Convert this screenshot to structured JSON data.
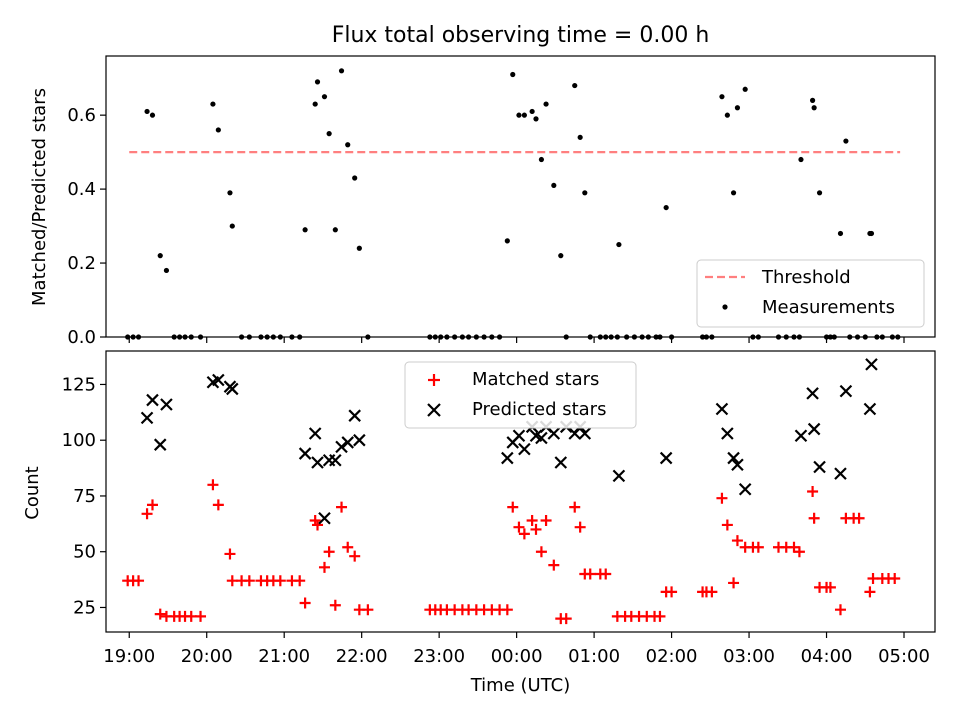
{
  "chart_data": [
    {
      "type": "scatter",
      "title": "Flux total observing time = 0.00 h",
      "xlabel": "",
      "ylabel": "Matched/Predicted stars",
      "xlim": [
        18.7,
        29.4
      ],
      "ylim": [
        0,
        0.76
      ],
      "x_ticks": [
        19,
        20,
        21,
        22,
        23,
        24,
        25,
        26,
        27,
        28,
        29
      ],
      "y_ticks": [
        0.0,
        0.2,
        0.4,
        0.6
      ],
      "y_tick_labels": [
        "0.0",
        "0.2",
        "0.4",
        "0.6"
      ],
      "legend": {
        "position": "bottom-right",
        "entries": [
          "Threshold",
          "Measurements"
        ]
      },
      "threshold": {
        "name": "Threshold",
        "value": 0.5,
        "x_start": 19.0,
        "x_end": 28.95,
        "color": "#ff7f7f"
      },
      "series": [
        {
          "name": "Measurements",
          "marker": "dot",
          "color": "#000000",
          "points": [
            [
              18.98,
              0
            ],
            [
              19.05,
              0
            ],
            [
              19.12,
              0
            ],
            [
              19.23,
              0.61
            ],
            [
              19.3,
              0.6
            ],
            [
              19.4,
              0.22
            ],
            [
              19.48,
              0.18
            ],
            [
              19.58,
              0
            ],
            [
              19.65,
              0
            ],
            [
              19.72,
              0
            ],
            [
              19.8,
              0
            ],
            [
              19.92,
              0
            ],
            [
              20.08,
              0.63
            ],
            [
              20.15,
              0.56
            ],
            [
              20.3,
              0.39
            ],
            [
              20.33,
              0.3
            ],
            [
              20.45,
              0
            ],
            [
              20.55,
              0
            ],
            [
              20.7,
              0
            ],
            [
              20.78,
              0
            ],
            [
              20.86,
              0
            ],
            [
              20.95,
              0
            ],
            [
              21.1,
              0
            ],
            [
              21.2,
              0
            ],
            [
              21.27,
              0.29
            ],
            [
              21.4,
              0.63
            ],
            [
              21.43,
              0.69
            ],
            [
              21.52,
              0.65
            ],
            [
              21.58,
              0.55
            ],
            [
              21.66,
              0.29
            ],
            [
              21.74,
              0.72
            ],
            [
              21.82,
              0.52
            ],
            [
              21.91,
              0.43
            ],
            [
              21.97,
              0.24
            ],
            [
              22.08,
              0
            ],
            [
              22.88,
              0
            ],
            [
              22.95,
              0
            ],
            [
              23.02,
              0
            ],
            [
              23.1,
              0
            ],
            [
              23.2,
              0
            ],
            [
              23.3,
              0
            ],
            [
              23.38,
              0
            ],
            [
              23.48,
              0
            ],
            [
              23.58,
              0
            ],
            [
              23.68,
              0
            ],
            [
              23.78,
              0
            ],
            [
              23.88,
              0.26
            ],
            [
              23.95,
              0.71
            ],
            [
              24.03,
              0.6
            ],
            [
              24.1,
              0.6
            ],
            [
              24.2,
              0.61
            ],
            [
              24.25,
              0.59
            ],
            [
              24.32,
              0.48
            ],
            [
              24.38,
              0.63
            ],
            [
              24.48,
              0.41
            ],
            [
              24.57,
              0.22
            ],
            [
              24.64,
              0
            ],
            [
              24.75,
              0.68
            ],
            [
              24.82,
              0.54
            ],
            [
              24.88,
              0.39
            ],
            [
              24.95,
              0
            ],
            [
              25.08,
              0
            ],
            [
              25.15,
              0
            ],
            [
              25.22,
              0
            ],
            [
              25.3,
              0
            ],
            [
              25.32,
              0.25
            ],
            [
              25.42,
              0
            ],
            [
              25.52,
              0
            ],
            [
              25.62,
              0
            ],
            [
              25.7,
              0
            ],
            [
              25.8,
              0
            ],
            [
              25.85,
              0
            ],
            [
              25.93,
              0.35
            ],
            [
              26.0,
              0
            ],
            [
              26.4,
              0
            ],
            [
              26.45,
              0
            ],
            [
              26.52,
              0
            ],
            [
              26.65,
              0.65
            ],
            [
              26.72,
              0.6
            ],
            [
              26.8,
              0.39
            ],
            [
              26.85,
              0.62
            ],
            [
              26.95,
              0.67
            ],
            [
              27.05,
              0
            ],
            [
              27.12,
              0
            ],
            [
              27.38,
              0
            ],
            [
              27.48,
              0
            ],
            [
              27.58,
              0
            ],
            [
              27.65,
              0
            ],
            [
              27.67,
              0.48
            ],
            [
              27.82,
              0.64
            ],
            [
              27.84,
              0.62
            ],
            [
              27.91,
              0.39
            ],
            [
              28.0,
              0
            ],
            [
              28.05,
              0
            ],
            [
              28.1,
              0
            ],
            [
              28.18,
              0.28
            ],
            [
              28.25,
              0.53
            ],
            [
              28.3,
              0
            ],
            [
              28.4,
              0
            ],
            [
              28.5,
              0
            ],
            [
              28.56,
              0.28
            ],
            [
              28.58,
              0.28
            ],
            [
              28.65,
              0
            ],
            [
              28.72,
              0
            ],
            [
              28.85,
              0
            ],
            [
              28.92,
              0
            ]
          ]
        }
      ]
    },
    {
      "type": "scatter",
      "title": "",
      "xlabel": "Time (UTC)",
      "ylabel": "Count",
      "xlim": [
        18.7,
        29.4
      ],
      "ylim": [
        14,
        140
      ],
      "x_ticks": [
        19,
        20,
        21,
        22,
        23,
        24,
        25,
        26,
        27,
        28,
        29
      ],
      "x_tick_labels": [
        "19:00",
        "20:00",
        "21:00",
        "22:00",
        "23:00",
        "00:00",
        "01:00",
        "02:00",
        "03:00",
        "04:00",
        "05:00"
      ],
      "y_ticks": [
        25,
        50,
        75,
        100,
        125
      ],
      "y_tick_labels": [
        "25",
        "50",
        "75",
        "100",
        "125"
      ],
      "legend": {
        "position": "top-center",
        "entries": [
          "Matched stars",
          "Predicted stars"
        ]
      },
      "series": [
        {
          "name": "Matched stars",
          "marker": "plus",
          "color": "#ff0000",
          "points": [
            [
              18.98,
              37
            ],
            [
              19.05,
              37
            ],
            [
              19.12,
              37
            ],
            [
              19.23,
              67
            ],
            [
              19.3,
              71
            ],
            [
              19.4,
              22
            ],
            [
              19.48,
              21
            ],
            [
              19.58,
              21
            ],
            [
              19.65,
              21
            ],
            [
              19.72,
              21
            ],
            [
              19.8,
              21
            ],
            [
              19.92,
              21
            ],
            [
              20.08,
              80
            ],
            [
              20.15,
              71
            ],
            [
              20.3,
              49
            ],
            [
              20.33,
              37
            ],
            [
              20.45,
              37
            ],
            [
              20.55,
              37
            ],
            [
              20.7,
              37
            ],
            [
              20.78,
              37
            ],
            [
              20.86,
              37
            ],
            [
              20.95,
              37
            ],
            [
              21.1,
              37
            ],
            [
              21.2,
              37
            ],
            [
              21.27,
              27
            ],
            [
              21.4,
              64
            ],
            [
              21.43,
              62
            ],
            [
              21.52,
              43
            ],
            [
              21.58,
              50
            ],
            [
              21.66,
              26
            ],
            [
              21.74,
              70
            ],
            [
              21.82,
              52
            ],
            [
              21.91,
              48
            ],
            [
              21.97,
              24
            ],
            [
              22.08,
              24
            ],
            [
              22.88,
              24
            ],
            [
              22.95,
              24
            ],
            [
              23.02,
              24
            ],
            [
              23.1,
              24
            ],
            [
              23.2,
              24
            ],
            [
              23.3,
              24
            ],
            [
              23.38,
              24
            ],
            [
              23.48,
              24
            ],
            [
              23.58,
              24
            ],
            [
              23.68,
              24
            ],
            [
              23.78,
              24
            ],
            [
              23.88,
              24
            ],
            [
              23.95,
              70
            ],
            [
              24.03,
              61
            ],
            [
              24.1,
              58
            ],
            [
              24.2,
              64
            ],
            [
              24.25,
              60
            ],
            [
              24.32,
              50
            ],
            [
              24.38,
              64
            ],
            [
              24.48,
              44
            ],
            [
              24.57,
              20
            ],
            [
              24.64,
              20
            ],
            [
              24.75,
              70
            ],
            [
              24.82,
              61
            ],
            [
              24.88,
              40
            ],
            [
              24.95,
              40
            ],
            [
              25.08,
              40
            ],
            [
              25.15,
              40
            ],
            [
              25.3,
              21
            ],
            [
              25.4,
              21
            ],
            [
              25.48,
              21
            ],
            [
              25.58,
              21
            ],
            [
              25.68,
              21
            ],
            [
              25.78,
              21
            ],
            [
              25.85,
              21
            ],
            [
              25.93,
              32
            ],
            [
              26.0,
              32
            ],
            [
              26.4,
              32
            ],
            [
              26.45,
              32
            ],
            [
              26.52,
              32
            ],
            [
              26.65,
              74
            ],
            [
              26.72,
              62
            ],
            [
              26.8,
              36
            ],
            [
              26.85,
              55
            ],
            [
              26.95,
              52
            ],
            [
              27.05,
              52
            ],
            [
              27.12,
              52
            ],
            [
              27.38,
              52
            ],
            [
              27.48,
              52
            ],
            [
              27.58,
              52
            ],
            [
              27.65,
              50
            ],
            [
              27.82,
              77
            ],
            [
              27.84,
              65
            ],
            [
              27.91,
              34
            ],
            [
              28.0,
              34
            ],
            [
              28.05,
              34
            ],
            [
              28.18,
              24
            ],
            [
              28.25,
              65
            ],
            [
              28.35,
              65
            ],
            [
              28.42,
              65
            ],
            [
              28.56,
              32
            ],
            [
              28.6,
              38
            ],
            [
              28.72,
              38
            ],
            [
              28.8,
              38
            ],
            [
              28.88,
              38
            ]
          ]
        },
        {
          "name": "Predicted stars",
          "marker": "x",
          "color": "#000000",
          "points": [
            [
              19.23,
              110
            ],
            [
              19.3,
              118
            ],
            [
              19.4,
              98
            ],
            [
              19.48,
              116
            ],
            [
              20.08,
              126
            ],
            [
              20.15,
              127
            ],
            [
              20.3,
              124
            ],
            [
              20.33,
              123
            ],
            [
              21.27,
              94
            ],
            [
              21.4,
              103
            ],
            [
              21.43,
              90
            ],
            [
              21.52,
              65
            ],
            [
              21.58,
              91
            ],
            [
              21.66,
              91
            ],
            [
              21.74,
              97
            ],
            [
              21.82,
              99
            ],
            [
              21.91,
              111
            ],
            [
              21.97,
              100
            ],
            [
              23.88,
              92
            ],
            [
              23.95,
              99
            ],
            [
              24.03,
              102
            ],
            [
              24.1,
              96
            ],
            [
              24.2,
              106
            ],
            [
              24.25,
              102
            ],
            [
              24.32,
              101
            ],
            [
              24.38,
              106
            ],
            [
              24.48,
              103
            ],
            [
              24.57,
              90
            ],
            [
              24.64,
              106
            ],
            [
              24.75,
              103
            ],
            [
              24.82,
              106
            ],
            [
              24.88,
              103
            ],
            [
              25.32,
              84
            ],
            [
              25.93,
              92
            ],
            [
              26.65,
              114
            ],
            [
              26.72,
              103
            ],
            [
              26.8,
              92
            ],
            [
              26.85,
              89
            ],
            [
              26.95,
              78
            ],
            [
              27.67,
              102
            ],
            [
              27.82,
              121
            ],
            [
              27.84,
              105
            ],
            [
              27.91,
              88
            ],
            [
              28.18,
              85
            ],
            [
              28.25,
              122
            ],
            [
              28.56,
              114
            ],
            [
              28.58,
              134
            ]
          ]
        }
      ]
    }
  ]
}
